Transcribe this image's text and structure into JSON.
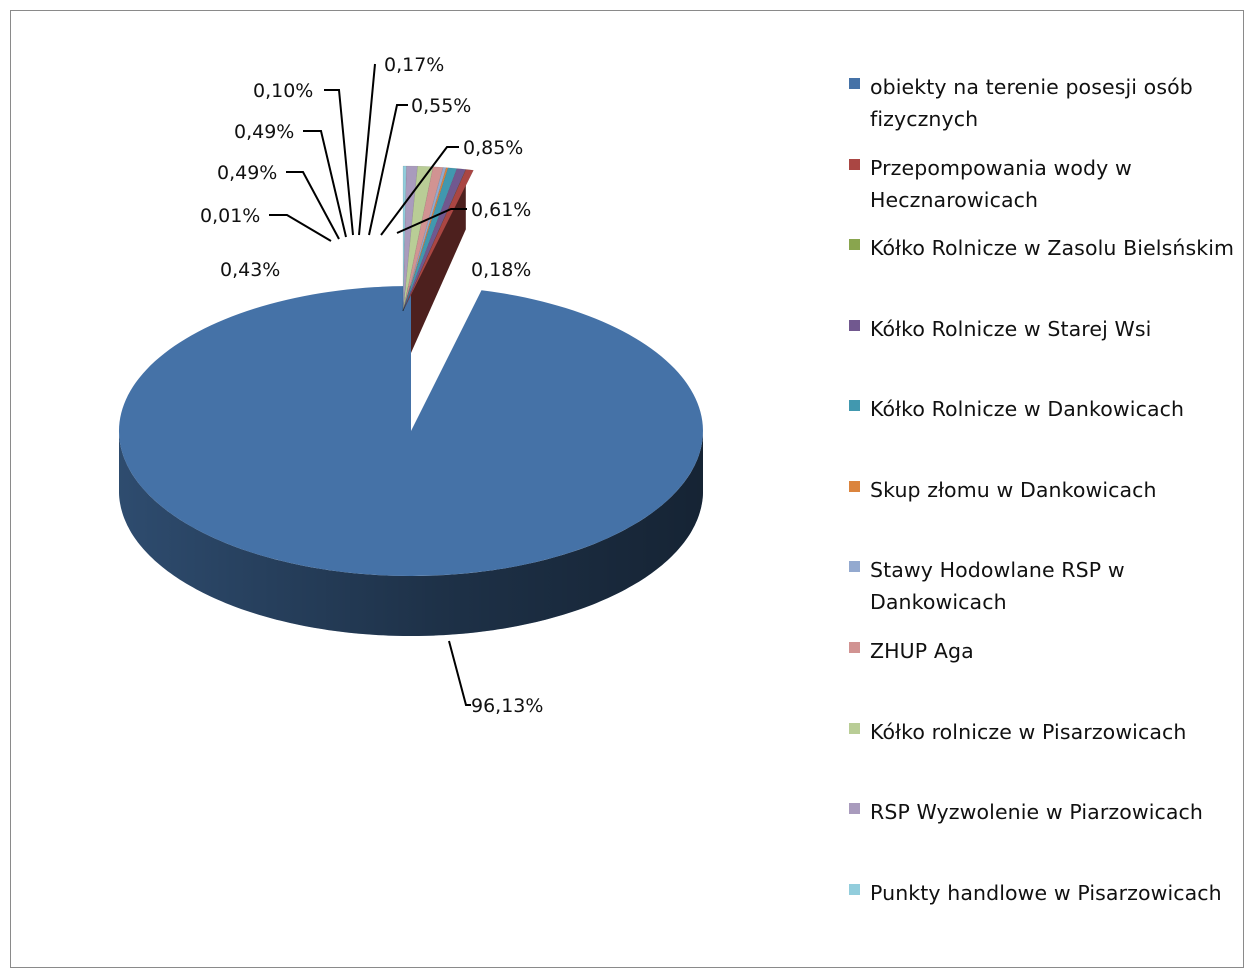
{
  "chart_data": {
    "type": "pie",
    "three_d": true,
    "categories": [
      "obiekty na terenie posesji osób fizycznych",
      "Przepompowania wody w Hecznarowicach",
      "Kółko Rolnicze w Zasolu Bielsńskim",
      "Kółko Rolnicze w Starej Wsi",
      "Kółko Rolnicze w Dankowicach",
      "Skup złomu w Dankowicach",
      "Stawy Hodowlane RSP w Dankowicach",
      "ZHUP Aga",
      "Kółko rolnicze w Pisarzowicach",
      "RSP Wyzwolenie w Piarzowicach",
      "Punkty handlowe w Pisarzowicach"
    ],
    "values": [
      96.13,
      0.43,
      0.01,
      0.49,
      0.49,
      0.1,
      0.17,
      0.55,
      0.85,
      0.61,
      0.18
    ],
    "data_labels": [
      "96,13%",
      "0,43%",
      "0,01%",
      "0,49%",
      "0,49%",
      "0,10%",
      "0,17%",
      "0,55%",
      "0,85%",
      "0,61%",
      "0,18%"
    ],
    "colors": [
      "#4572A7",
      "#AA4643",
      "#89A54E",
      "#71588F",
      "#4198AF",
      "#DB843D",
      "#93A9CF",
      "#D19392",
      "#B9CD96",
      "#A99BBD",
      "#92CDDC"
    ],
    "legend_position": "right",
    "title": ""
  }
}
